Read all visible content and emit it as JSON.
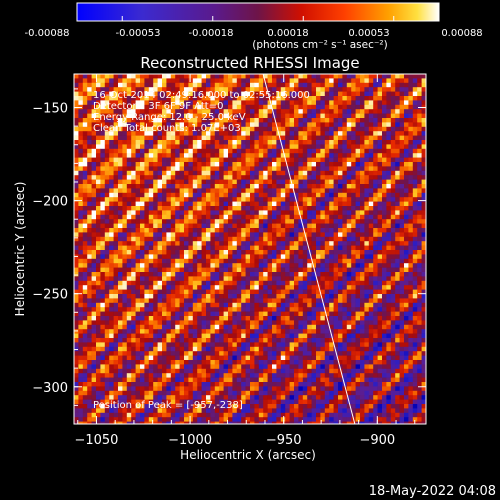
{
  "colorbar": {
    "tick_labels": [
      "-0.00088",
      "-0.00053",
      "-0.00018",
      "0.00018",
      "0.00053",
      "0.00088"
    ],
    "range": [
      -0.00088,
      0.00088
    ],
    "units_label": "(photons cm⁻² s⁻¹ asec⁻²)"
  },
  "plot": {
    "title": "Reconstructed RHESSI Image",
    "info": [
      "16-Oct-2014 02:49:16.000 to 02:55:16.000",
      "Detectors: 3F 6F 9F Att=0",
      "Energy Range: 12.0 - 25.0 keV",
      "Clean    Total counts: 1.07E+03"
    ],
    "peak_text": "Position of Peak = [-957,-238]"
  },
  "chart_data": {
    "type": "heatmap",
    "title": "Reconstructed RHESSI Image",
    "xlabel": "Heliocentric X (arcsec)",
    "ylabel": "Heliocentric Y (arcsec)",
    "xlim": [
      -1062,
      -874
    ],
    "ylim": [
      -320,
      -132
    ],
    "x_ticks": [
      -1050,
      -1000,
      -950,
      -900
    ],
    "y_ticks": [
      -300,
      -250,
      -200,
      -150
    ],
    "x_tick_labels": [
      "−1050",
      "−1000",
      "−950",
      "−900"
    ],
    "y_tick_labels": [
      "−300",
      "−250",
      "−200",
      "−150"
    ],
    "limb_line": [
      [
        -961,
        -132
      ],
      [
        -912,
        -320
      ]
    ],
    "peak": [
      -957,
      -238
    ],
    "colormap": "blue-purple-red-yellow-white",
    "colors": {
      "negative_low": "#0000ff",
      "mid": "#5a1a8c",
      "positive_mid": "#ff2000",
      "positive_high": "#ffffff"
    }
  },
  "footer": {
    "timestamp": "18-May-2022 04:08"
  }
}
